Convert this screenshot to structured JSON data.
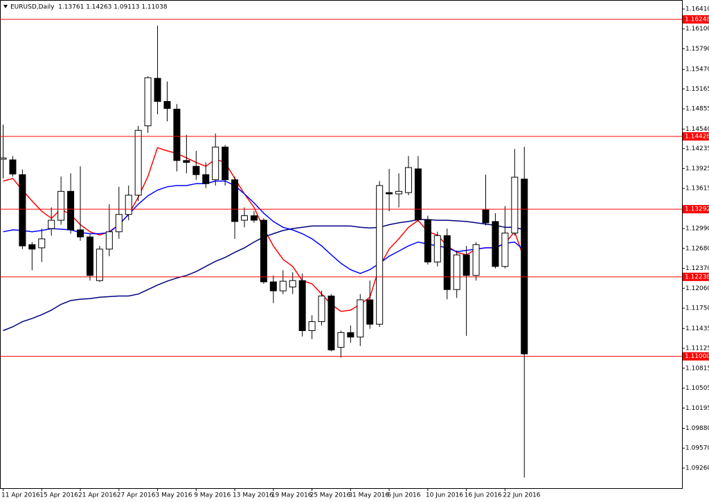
{
  "chart_data": {
    "type": "candlestick",
    "title": "EURUSD,Daily  1.13761 1.14263 1.09113 1.11038",
    "categories": [
      "11 Apr 2016",
      null,
      null,
      null,
      "15 Apr 2016",
      null,
      null,
      null,
      "21 Apr 2016",
      null,
      null,
      null,
      "27 Apr 2016",
      null,
      null,
      null,
      "3 May 2016",
      null,
      null,
      null,
      "9 May 2016",
      null,
      null,
      null,
      "13 May 2016",
      null,
      null,
      null,
      "19 May 2016",
      null,
      null,
      null,
      "25 May 2016",
      null,
      null,
      null,
      "31 May 2016",
      null,
      null,
      null,
      "6 Jun 2016",
      null,
      null,
      null,
      "10 Jun 2016",
      null,
      null,
      null,
      "16 Jun 2016",
      null,
      null,
      null,
      "22 Jun 2016",
      null,
      null
    ],
    "open": [
      1.1407,
      1.1406,
      1.1383,
      1.1274,
      1.1269,
      1.1299,
      1.1312,
      1.1357,
      1.1297,
      1.1286,
      1.1218,
      1.1267,
      1.1294,
      1.1321,
      1.1351,
      1.1459,
      1.1533,
      1.1497,
      1.1485,
      1.1405,
      1.1396,
      1.1383,
      1.1375,
      1.1426,
      1.1375,
      1.1312,
      1.1319,
      1.1312,
      1.1216,
      1.1202,
      1.1208,
      1.1218,
      1.114,
      1.1154,
      1.1194,
      1.1114,
      1.1137,
      1.113,
      1.1188,
      1.115,
      1.1355,
      1.1353,
      1.1355,
      1.1392,
      1.1313,
      1.1247,
      1.1288,
      1.1204,
      1.1258,
      1.1226,
      1.1328,
      1.131,
      1.124,
      1.1292,
      1.13761
    ],
    "high": [
      1.1461,
      1.1412,
      1.1391,
      1.1278,
      1.1299,
      1.1332,
      1.138,
      1.1385,
      1.1396,
      1.1291,
      1.1272,
      1.1337,
      1.1364,
      1.1366,
      1.1459,
      1.1536,
      1.1615,
      1.1528,
      1.1493,
      1.1445,
      1.142,
      1.1402,
      1.1447,
      1.1429,
      1.138,
      1.1332,
      1.1326,
      1.1315,
      1.1226,
      1.1234,
      1.1231,
      1.1229,
      1.1164,
      1.1202,
      1.1197,
      1.114,
      1.1148,
      1.1197,
      1.1218,
      1.1373,
      1.1392,
      1.1385,
      1.1412,
      1.1412,
      1.1319,
      1.1294,
      1.1299,
      1.1265,
      1.1272,
      1.1278,
      1.1383,
      1.1323,
      1.1334,
      1.1423,
      1.14263
    ],
    "low": [
      1.1377,
      1.138,
      1.1267,
      1.1234,
      1.1247,
      1.1288,
      1.1305,
      1.1291,
      1.128,
      1.1218,
      1.1216,
      1.1256,
      1.1283,
      1.1312,
      1.1342,
      1.1448,
      1.1477,
      1.1466,
      1.1388,
      1.1385,
      1.1375,
      1.1362,
      1.1366,
      1.1366,
      1.1283,
      1.1301,
      1.1308,
      1.1213,
      1.1183,
      1.1197,
      1.1197,
      1.1131,
      1.1127,
      1.1148,
      1.1108,
      1.1098,
      1.1121,
      1.1116,
      1.1143,
      1.1146,
      1.1326,
      1.1332,
      1.1351,
      1.131,
      1.1243,
      1.124,
      1.1189,
      1.1191,
      1.1132,
      1.1218,
      1.1304,
      1.1237,
      1.1237,
      1.1288,
      1.09113
    ],
    "close": [
      1.1409,
      1.1384,
      1.1272,
      1.1267,
      1.1283,
      1.1312,
      1.1357,
      1.1297,
      1.1286,
      1.1226,
      1.1267,
      1.1294,
      1.1321,
      1.1351,
      1.1452,
      1.1534,
      1.1497,
      1.1486,
      1.1405,
      1.1402,
      1.1383,
      1.1369,
      1.1426,
      1.1375,
      1.131,
      1.1319,
      1.1312,
      1.1216,
      1.1202,
      1.1217,
      1.1218,
      1.114,
      1.1154,
      1.1194,
      1.111,
      1.1137,
      1.113,
      1.1188,
      1.115,
      1.1366,
      1.1353,
      1.1357,
      1.1394,
      1.1313,
      1.1247,
      1.1288,
      1.1204,
      1.1258,
      1.1226,
      1.1274,
      1.1308,
      1.124,
      1.1292,
      1.1379,
      1.11038
    ],
    "up_color": "#ffffff",
    "down_color": "#000000",
    "lines": [
      {
        "color": "#ff0000",
        "values": [
          1.1373,
          1.1377,
          1.1359,
          1.1342,
          1.1326,
          1.1315,
          1.1329,
          1.1321,
          1.1305,
          1.1294,
          1.1289,
          1.1294,
          1.1305,
          1.1321,
          1.1348,
          1.138,
          1.1425,
          1.142,
          1.1416,
          1.1409,
          1.1402,
          1.1396,
          1.1407,
          1.1402,
          1.1377,
          1.1353,
          1.1332,
          1.1299,
          1.1272,
          1.1251,
          1.124,
          1.1218,
          1.1213,
          1.1197,
          1.1181,
          1.117,
          1.1172,
          1.1181,
          1.1192,
          1.124,
          1.1267,
          1.1283,
          1.1301,
          1.1312,
          1.1294,
          1.1289,
          1.1272,
          1.1262,
          1.1258,
          1.1267,
          1.1269,
          1.1269,
          1.1276,
          1.1294,
          1.1251
        ]
      },
      {
        "color": "#0000ff",
        "values": [
          1.1294,
          1.1297,
          1.1296,
          1.1294,
          1.1296,
          1.1299,
          1.1298,
          1.1297,
          1.1293,
          1.1291,
          1.1291,
          1.1293,
          1.1305,
          1.1321,
          1.1337,
          1.135,
          1.1359,
          1.1364,
          1.1366,
          1.1366,
          1.1369,
          1.1369,
          1.1373,
          1.1373,
          1.1366,
          1.1353,
          1.1339,
          1.1323,
          1.131,
          1.1301,
          1.1297,
          1.1291,
          1.1283,
          1.1272,
          1.1258,
          1.1245,
          1.1235,
          1.1229,
          1.1235,
          1.1245,
          1.1256,
          1.1264,
          1.1272,
          1.1278,
          1.1275,
          1.1272,
          1.1269,
          1.1263,
          1.1265,
          1.1267,
          1.1269,
          1.1269,
          1.1276,
          1.1278,
          1.1265
        ]
      },
      {
        "color": "#000080",
        "values": [
          1.114,
          1.1146,
          1.1154,
          1.1159,
          1.1165,
          1.1172,
          1.1181,
          1.1187,
          1.1189,
          1.119,
          1.1192,
          1.1193,
          1.1194,
          1.1194,
          1.1197,
          1.1204,
          1.1211,
          1.1217,
          1.1222,
          1.1226,
          1.1232,
          1.124,
          1.1248,
          1.1254,
          1.1262,
          1.1269,
          1.1278,
          1.1286,
          1.1291,
          1.1296,
          1.1299,
          1.1301,
          1.1303,
          1.1303,
          1.1303,
          1.1303,
          1.1303,
          1.1301,
          1.13,
          1.1301,
          1.1305,
          1.1308,
          1.131,
          1.1313,
          1.1313,
          1.1312,
          1.1312,
          1.1311,
          1.131,
          1.1308,
          1.1306,
          1.1304,
          1.1301,
          1.1301,
          1.1297
        ]
      }
    ],
    "levels": [
      1.16248,
      1.14426,
      1.13292,
      1.12238,
      {
        "value": 1.11,
        "label": "1.11000"
      }
    ],
    "level_color": "#ff0000",
    "ylim": [
      1.08947,
      1.1655
    ],
    "yticks": [
      {
        "value": 1.1641,
        "label": "1.16410"
      },
      {
        "value": 1.161,
        "label": "1.16100"
      },
      {
        "value": 1.1579,
        "label": "1.15790"
      },
      {
        "value": 1.1547,
        "label": "1.15470"
      },
      1.15165,
      1.14855,
      {
        "value": 1.1454,
        "label": "1.14540"
      },
      1.14235,
      1.13925,
      1.13615,
      {
        "value": 1.1299,
        "label": "1.12990"
      },
      {
        "value": 1.1268,
        "label": "1.12680"
      },
      {
        "value": 1.1237,
        "label": "1.12370"
      },
      {
        "value": 1.1206,
        "label": "1.12060"
      },
      {
        "value": 1.1175,
        "label": "1.11750"
      },
      1.11435,
      1.11125,
      1.10815,
      1.10505,
      1.10195,
      {
        "value": 1.0988,
        "label": "1.09880"
      },
      {
        "value": 1.0957,
        "label": "1.09570"
      },
      {
        "value": 1.0926,
        "label": "1.09260"
      }
    ]
  }
}
